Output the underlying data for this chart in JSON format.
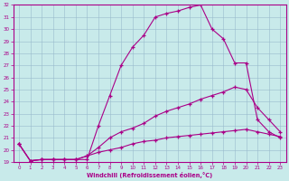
{
  "xlabel": "Windchill (Refroidissement éolien,°C)",
  "xlim": [
    -0.5,
    23.5
  ],
  "ylim": [
    19,
    32
  ],
  "xticks": [
    0,
    1,
    2,
    3,
    4,
    5,
    6,
    7,
    8,
    9,
    10,
    11,
    12,
    13,
    14,
    15,
    16,
    17,
    18,
    19,
    20,
    21,
    22,
    23
  ],
  "yticks": [
    19,
    20,
    21,
    22,
    23,
    24,
    25,
    26,
    27,
    28,
    29,
    30,
    31,
    32
  ],
  "background_color": "#c8eaea",
  "grid_color": "#99bbcc",
  "line_color": "#aa0088",
  "line1_x": [
    0,
    1,
    2,
    3,
    4,
    5,
    6,
    7,
    8,
    9,
    10,
    11,
    12,
    13,
    14,
    15,
    16,
    17,
    18,
    19,
    20,
    21,
    22,
    23
  ],
  "line1_y": [
    20.5,
    19.1,
    19.2,
    19.2,
    19.2,
    19.2,
    19.2,
    22.0,
    24.5,
    27.0,
    28.5,
    29.5,
    31.0,
    31.3,
    31.5,
    31.8,
    32.0,
    30.0,
    29.2,
    27.2,
    27.2,
    22.5,
    21.5,
    21.0
  ],
  "line2_x": [
    0,
    1,
    2,
    3,
    4,
    5,
    6,
    7,
    8,
    9,
    10,
    11,
    12,
    13,
    14,
    15,
    16,
    17,
    18,
    19,
    20,
    21,
    22,
    23
  ],
  "line2_y": [
    20.5,
    19.1,
    19.2,
    19.2,
    19.2,
    19.2,
    19.5,
    20.2,
    21.0,
    21.5,
    21.8,
    22.2,
    22.8,
    23.2,
    23.5,
    23.8,
    24.2,
    24.5,
    24.8,
    25.2,
    25.0,
    23.5,
    22.5,
    21.5
  ],
  "line3_x": [
    0,
    1,
    2,
    3,
    4,
    5,
    6,
    7,
    8,
    9,
    10,
    11,
    12,
    13,
    14,
    15,
    16,
    17,
    18,
    19,
    20,
    21,
    22,
    23
  ],
  "line3_y": [
    20.5,
    19.1,
    19.2,
    19.2,
    19.2,
    19.2,
    19.5,
    19.8,
    20.0,
    20.2,
    20.5,
    20.7,
    20.8,
    21.0,
    21.1,
    21.2,
    21.3,
    21.4,
    21.5,
    21.6,
    21.7,
    21.5,
    21.3,
    21.1
  ]
}
